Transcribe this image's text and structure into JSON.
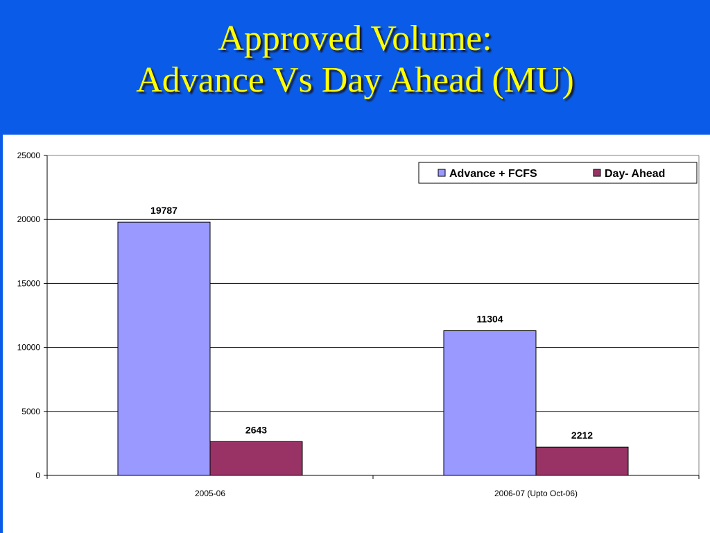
{
  "slide": {
    "title_line1": "Approved Volume:",
    "title_line2": "Advance Vs Day Ahead (MU)",
    "background_color": "#0a5ce8",
    "title_color": "#ffff00"
  },
  "chart_data": {
    "type": "bar",
    "categories": [
      "2005-06",
      "2006-07 (Upto Oct-06)"
    ],
    "series": [
      {
        "name": "Advance + FCFS",
        "color": "#9999ff",
        "values": [
          19787,
          11304
        ]
      },
      {
        "name": "Day- Ahead",
        "color": "#993366",
        "values": [
          2643,
          2212
        ]
      }
    ],
    "ylim": [
      0,
      25000
    ],
    "yticks": [
      0,
      5000,
      10000,
      15000,
      20000,
      25000
    ],
    "grid": true,
    "legend_position": "top-right",
    "data_labels": true
  }
}
